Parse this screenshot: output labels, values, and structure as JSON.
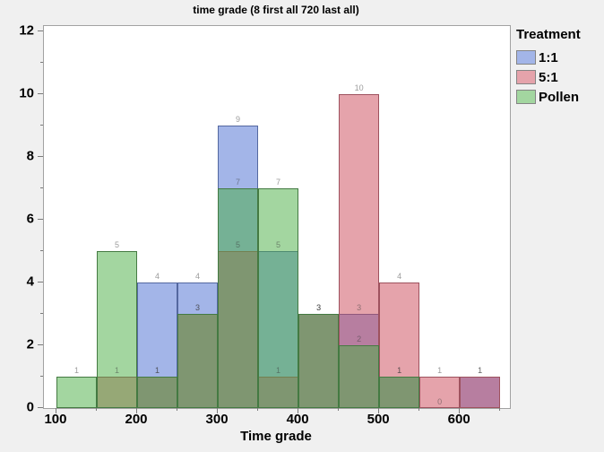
{
  "window": {
    "background": "#f0f0f0",
    "plot_background": "#ffffff",
    "plot_border": "#a2a2a2"
  },
  "legend": {
    "title": "Treatment"
  },
  "chart_data": {
    "type": "histogram",
    "title": "time grade (8 first all 720 last all)",
    "xlabel": "Time grade",
    "ylabel": "",
    "legend_title": "Treatment",
    "legend_position": "right",
    "grid": false,
    "bin_width": 50,
    "xlim": [
      84.5,
      662
    ],
    "ylim": [
      0,
      12.17
    ],
    "x_ticks_major": [
      100,
      200,
      300,
      400,
      500,
      600
    ],
    "x_ticks_minor": [
      150,
      250,
      350,
      450,
      550,
      650
    ],
    "y_ticks_major": [
      0,
      2,
      4,
      6,
      8,
      10,
      12
    ],
    "y_ticks_minor": [
      1,
      3,
      5,
      7,
      9,
      11
    ],
    "series": [
      {
        "name": "1:1",
        "fill": "rgba(71,107,209,0.5)",
        "border": "#5468a0",
        "swatch": "#a3b5e8",
        "bins": [
          {
            "x0": 200,
            "count": 4
          },
          {
            "x0": 250,
            "count": 4
          },
          {
            "x0": 300,
            "count": 9
          },
          {
            "x0": 350,
            "count": 5
          },
          {
            "x0": 400,
            "count": 3
          },
          {
            "x0": 450,
            "count": 3
          },
          {
            "x0": 500,
            "count": 1
          },
          {
            "x0": 600,
            "count": 1
          }
        ]
      },
      {
        "name": "5:1",
        "fill": "rgba(203,71,87,0.5)",
        "border": "#9e525e",
        "swatch": "#e5a3ab",
        "bins": [
          {
            "x0": 150,
            "count": 1
          },
          {
            "x0": 200,
            "count": 1
          },
          {
            "x0": 250,
            "count": 3
          },
          {
            "x0": 300,
            "count": 5
          },
          {
            "x0": 350,
            "count": 1
          },
          {
            "x0": 400,
            "count": 3
          },
          {
            "x0": 450,
            "count": 10
          },
          {
            "x0": 500,
            "count": 4
          },
          {
            "x0": 550,
            "count": 1
          },
          {
            "x0": 600,
            "count": 1
          }
        ]
      },
      {
        "name": "Pollen",
        "fill": "rgba(71,173,65,0.5)",
        "border": "#447a42",
        "swatch": "#a3d6a0",
        "bins": [
          {
            "x0": 100,
            "count": 1
          },
          {
            "x0": 150,
            "count": 5
          },
          {
            "x0": 200,
            "count": 1
          },
          {
            "x0": 250,
            "count": 3
          },
          {
            "x0": 300,
            "count": 7
          },
          {
            "x0": 350,
            "count": 7
          },
          {
            "x0": 400,
            "count": 3
          },
          {
            "x0": 450,
            "count": 2
          },
          {
            "x0": 500,
            "count": 1
          },
          {
            "x0": 550,
            "count": 0
          }
        ]
      }
    ]
  }
}
